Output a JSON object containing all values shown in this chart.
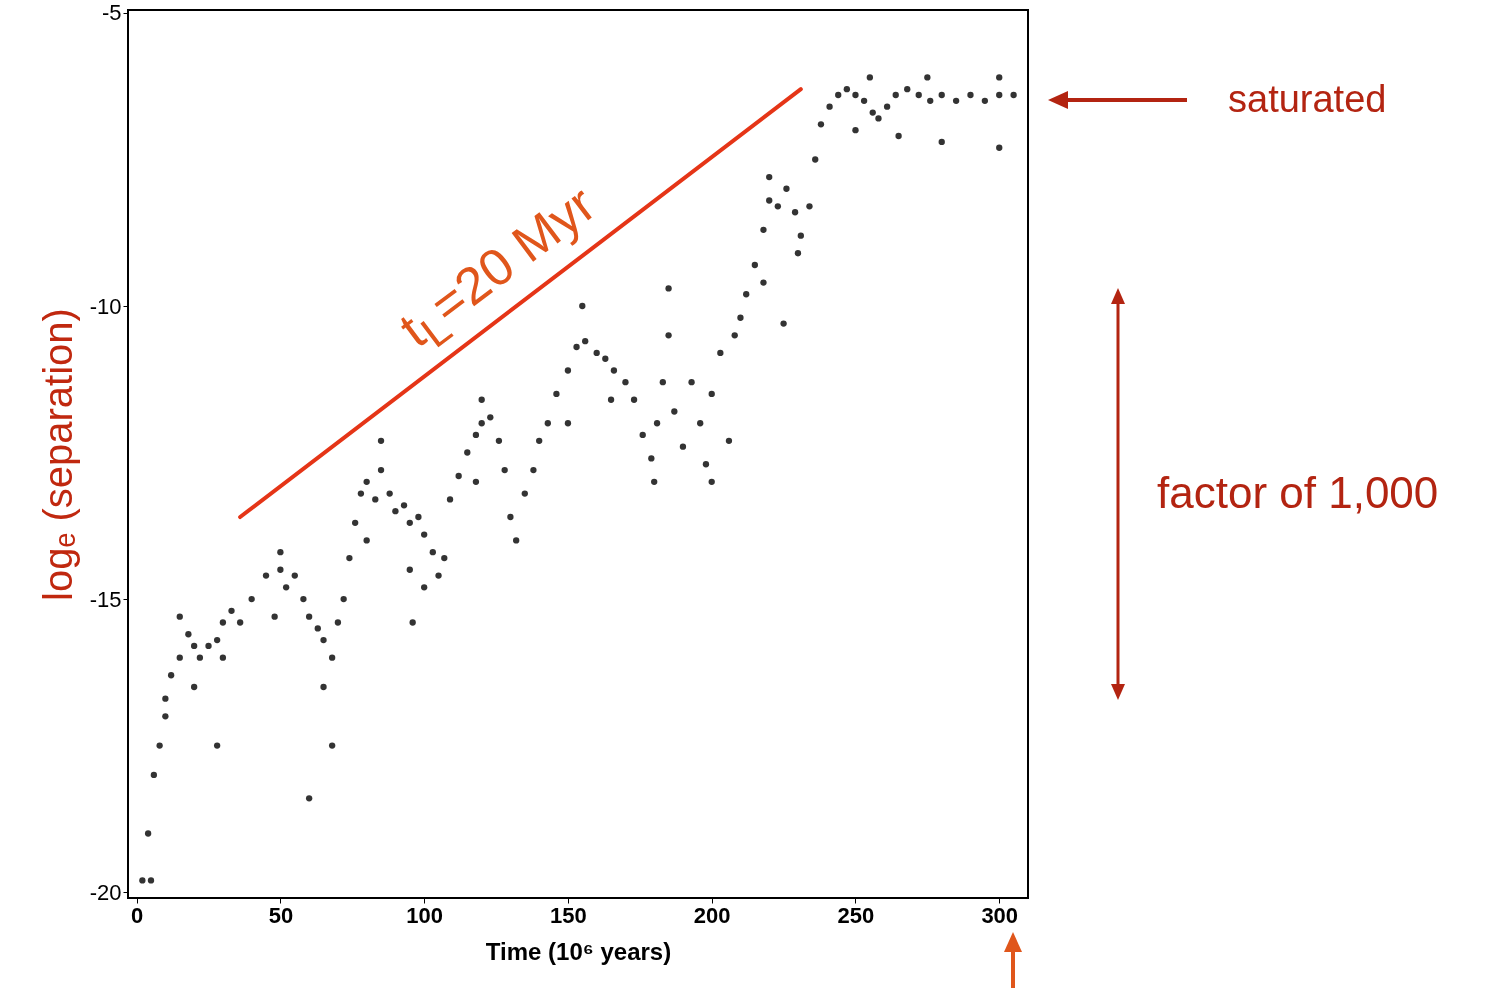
{
  "chart_data": {
    "type": "scatter",
    "xlabel": "Time (10⁶ years)",
    "ylabel": "logₑ (separation)",
    "xlim": [
      -3,
      310
    ],
    "ylim": [
      -20.1,
      -4.95
    ],
    "xticks": [
      0,
      50,
      100,
      150,
      200,
      250,
      300
    ],
    "yticks": [
      -20,
      -15,
      -10,
      -5
    ],
    "grid": false,
    "series": [
      {
        "color": "#333333",
        "marker": "circle",
        "x": [
          2,
          4,
          6,
          8,
          10,
          12,
          15,
          18,
          20,
          22,
          25,
          28,
          30,
          33,
          36,
          40,
          45,
          50,
          52,
          55,
          58,
          60,
          63,
          65,
          68,
          70,
          72,
          74,
          76,
          78,
          80,
          83,
          85,
          88,
          90,
          93,
          95,
          98,
          100,
          103,
          105,
          107,
          109,
          112,
          115,
          118,
          120,
          123,
          126,
          128,
          130,
          132,
          135,
          138,
          140,
          143,
          146,
          150,
          153,
          156,
          160,
          163,
          166,
          170,
          173,
          176,
          179,
          181,
          183,
          185,
          187,
          190,
          193,
          196,
          198,
          200,
          203,
          206,
          208,
          210,
          212,
          215,
          218,
          220,
          223,
          226,
          229,
          231,
          234,
          236,
          238,
          241,
          244,
          247,
          250,
          253,
          256,
          258,
          261,
          264,
          268,
          272,
          276,
          280,
          285,
          290,
          295,
          300,
          305,
          5,
          10,
          20,
          30,
          48,
          65,
          68,
          80,
          95,
          100,
          118,
          150,
          165,
          180,
          200,
          218,
          230,
          250,
          265,
          280,
          300,
          60,
          28,
          96,
          225,
          15,
          50,
          85,
          120,
          155,
          185,
          220,
          255,
          275,
          300
        ],
        "values": [
          -19.8,
          -19,
          -18,
          -17.5,
          -16.7,
          -16.3,
          -16,
          -15.6,
          -15.8,
          -16,
          -15.8,
          -15.7,
          -15.4,
          -15.2,
          -15.4,
          -15,
          -14.6,
          -14.5,
          -14.8,
          -14.6,
          -15,
          -15.3,
          -15.5,
          -15.7,
          -16,
          -15.4,
          -15,
          -14.3,
          -13.7,
          -13.2,
          -13,
          -13.3,
          -12.8,
          -13.2,
          -13.5,
          -13.4,
          -13.7,
          -13.6,
          -13.9,
          -14.2,
          -14.6,
          -14.3,
          -13.3,
          -12.9,
          -12.5,
          -12.2,
          -12,
          -11.9,
          -12.3,
          -12.8,
          -13.6,
          -14,
          -13.2,
          -12.8,
          -12.3,
          -12,
          -11.5,
          -11.1,
          -10.7,
          -10.6,
          -10.8,
          -10.9,
          -11.1,
          -11.3,
          -11.6,
          -12.2,
          -12.6,
          -12,
          -11.3,
          -10.5,
          -11.8,
          -12.4,
          -11.3,
          -12,
          -12.7,
          -11.5,
          -10.8,
          -12.3,
          -10.5,
          -10.2,
          -9.8,
          -9.3,
          -8.7,
          -8.2,
          -8.3,
          -8,
          -8.4,
          -8.8,
          -8.3,
          -7.5,
          -6.9,
          -6.6,
          -6.4,
          -6.3,
          -6.4,
          -6.5,
          -6.7,
          -6.8,
          -6.6,
          -6.4,
          -6.3,
          -6.4,
          -6.5,
          -6.4,
          -6.5,
          -6.4,
          -6.5,
          -6.4,
          -6.4,
          -19.8,
          -17,
          -16.5,
          -16,
          -15.3,
          -16.5,
          -17.5,
          -14,
          -14.5,
          -14.8,
          -13,
          -12,
          -11.6,
          -13,
          -13,
          -9.6,
          -9.1,
          -7,
          -7.1,
          -7.2,
          -7.3,
          -18.4,
          -17.5,
          -15.4,
          -10.3,
          -15.3,
          -14.2,
          -12.3,
          -11.6,
          -10,
          -9.7,
          -7.8,
          -6.1,
          -6.1,
          -6.1
        ]
      },
      {
        "type": "line",
        "color": "#e53517",
        "x": [
          36,
          231
        ],
        "values": [
          -13.6,
          -6.3
        ]
      }
    ],
    "annotations": [
      "t$_{L}$=20 Myr",
      "saturated",
      "factor of 1,000"
    ]
  }
}
